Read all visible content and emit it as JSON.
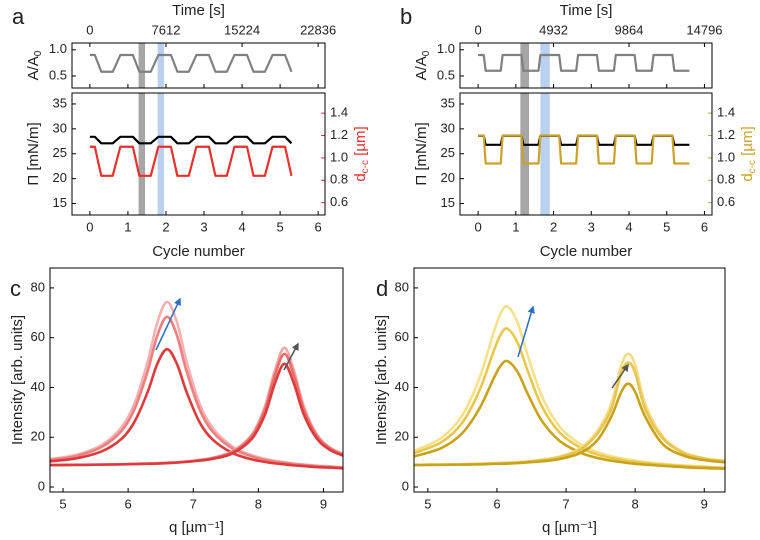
{
  "chart_data": [
    {
      "type": "stacked",
      "label": "a",
      "xlabel": "Cycle number",
      "xlim": [
        -0.47,
        6.18
      ],
      "xticks": [
        0,
        1,
        2,
        3,
        4,
        5,
        6
      ],
      "x2label": "Time [s]",
      "x2lim": [
        -1789,
        23521
      ],
      "x2ticks": [
        0,
        7612,
        15224,
        22836
      ],
      "spans": [
        {
          "x": [
            1.28,
            1.45
          ],
          "color": "#a6a6a6"
        },
        {
          "x": [
            1.78,
            1.95
          ],
          "color": "#b9d1ef"
        }
      ],
      "top": {
        "ylabel": "A/A",
        "ylabel_sub": "0",
        "ylim": [
          0.27,
          1.13
        ],
        "yticks": [
          {
            "value": 1,
            "label": "1.0"
          },
          0.5
        ],
        "series": [
          {
            "color": "#808080",
            "x": [
              0,
              0.13,
              0.3,
              0.6,
              0.8,
              1.13,
              1.3,
              1.6,
              1.8,
              2.13,
              2.3,
              2.6,
              2.8,
              3.13,
              3.3,
              3.6,
              3.8,
              4.13,
              4.3,
              4.6,
              4.8,
              5.13,
              5.3
            ],
            "values": [
              0.9,
              0.9,
              0.58,
              0.58,
              0.9,
              0.9,
              0.58,
              0.58,
              0.9,
              0.9,
              0.58,
              0.58,
              0.9,
              0.9,
              0.58,
              0.58,
              0.9,
              0.9,
              0.58,
              0.58,
              0.9,
              0.9,
              0.58
            ]
          }
        ]
      },
      "bottom": {
        "ylabel": "Π [mN/m]",
        "ylim": [
          12.7,
          37.2
        ],
        "yticks": [
          15,
          20,
          25,
          30,
          35
        ],
        "y2label": "d",
        "y2label_sub": "c-c",
        "y2label_unit": " [µm]",
        "y2lim": [
          0.49,
          1.58
        ],
        "y2color": "#e8302c",
        "y2ticks": [
          0.6,
          0.8,
          {
            "value": 1,
            "label": "1.0"
          },
          1.2,
          1.4
        ],
        "series": [
          {
            "color": "#000000",
            "x": [
              0,
              0.13,
              0.3,
              0.6,
              0.8,
              1.13,
              1.3,
              1.6,
              1.8,
              2.13,
              2.3,
              2.6,
              2.8,
              3.13,
              3.3,
              3.6,
              3.8,
              4.13,
              4.3,
              4.6,
              4.8,
              5.13,
              5.3
            ],
            "values": [
              28.4,
              28.4,
              27.1,
              27.1,
              28.4,
              28.4,
              27.1,
              27.1,
              28.4,
              28.4,
              27.1,
              27.1,
              28.4,
              28.4,
              27.1,
              27.1,
              28.4,
              28.4,
              27.1,
              27.1,
              28.4,
              28.4,
              27.1
            ]
          },
          {
            "color": "#e8302c",
            "axis": "y2",
            "x": [
              0,
              0.13,
              0.3,
              0.6,
              0.8,
              1.13,
              1.3,
              1.6,
              1.8,
              2.13,
              2.3,
              2.6,
              2.8,
              3.13,
              3.3,
              3.6,
              3.8,
              4.13,
              4.3,
              4.6,
              4.8,
              5.13,
              5.3
            ],
            "values": [
              1.1,
              1.1,
              0.84,
              0.84,
              1.1,
              1.1,
              0.84,
              0.84,
              1.1,
              1.1,
              0.84,
              0.84,
              1.1,
              1.1,
              0.84,
              0.84,
              1.1,
              1.1,
              0.84,
              0.84,
              1.1,
              1.1,
              0.84
            ]
          }
        ]
      }
    },
    {
      "type": "stacked",
      "label": "b",
      "xlabel": "Cycle number",
      "xlim": [
        -0.48,
        6.2
      ],
      "xticks": [
        0,
        1,
        2,
        3,
        4,
        5,
        6
      ],
      "x2label": "Time [s]",
      "x2lim": [
        -1184,
        15289
      ],
      "x2ticks": [
        0,
        4932,
        9864,
        14796
      ],
      "spans": [
        {
          "x": [
            1.12,
            1.35
          ],
          "color": "#a6a6a6"
        },
        {
          "x": [
            1.65,
            1.9
          ],
          "color": "#b9d1ef"
        }
      ],
      "top": {
        "ylabel": "A/A",
        "ylabel_sub": "0",
        "ylim": [
          0.27,
          1.13
        ],
        "yticks": [
          {
            "value": 1,
            "label": "1.0"
          },
          0.5
        ],
        "series": [
          {
            "color": "#808080",
            "x": [
              0,
              0.15,
              0.2,
              0.6,
              0.65,
              1.15,
              1.2,
              1.6,
              1.65,
              2.15,
              2.2,
              2.6,
              2.65,
              3.15,
              3.2,
              3.6,
              3.65,
              4.15,
              4.2,
              4.6,
              4.65,
              5.15,
              5.2,
              5.6
            ],
            "values": [
              0.9,
              0.9,
              0.6,
              0.6,
              0.9,
              0.9,
              0.6,
              0.6,
              0.9,
              0.9,
              0.6,
              0.6,
              0.9,
              0.9,
              0.6,
              0.6,
              0.9,
              0.9,
              0.6,
              0.6,
              0.9,
              0.9,
              0.6,
              0.6
            ]
          }
        ]
      },
      "bottom": {
        "ylabel": "Π [mN/m]",
        "ylim": [
          12.7,
          37.2
        ],
        "yticks": [
          15,
          20,
          25,
          30,
          35
        ],
        "y2label": "d",
        "y2label_sub": "c-c",
        "y2label_unit": " [µm]",
        "y2lim": [
          0.49,
          1.58
        ],
        "y2color": "#c9a227",
        "y2ticks": [
          0.6,
          0.8,
          {
            "value": 1,
            "label": "1.0"
          },
          1.2,
          1.4
        ],
        "series": [
          {
            "color": "#000000",
            "x": [
              0,
              0.15,
              0.2,
              0.6,
              0.65,
              1.15,
              1.2,
              1.6,
              1.65,
              2.15,
              2.2,
              2.6,
              2.65,
              3.15,
              3.2,
              3.6,
              3.65,
              4.15,
              4.2,
              4.6,
              4.65,
              5.15,
              5.2,
              5.6
            ],
            "values": [
              28.6,
              28.6,
              26.8,
              26.8,
              28.6,
              28.6,
              26.8,
              26.8,
              28.6,
              28.6,
              26.8,
              26.8,
              28.6,
              28.6,
              26.8,
              26.8,
              28.6,
              28.6,
              26.8,
              26.8,
              28.6,
              28.6,
              26.8,
              26.8
            ]
          },
          {
            "color": "#c9a227",
            "axis": "y2",
            "x": [
              0,
              0.15,
              0.2,
              0.6,
              0.65,
              1.15,
              1.2,
              1.6,
              1.65,
              2.15,
              2.2,
              2.6,
              2.65,
              3.15,
              3.2,
              3.6,
              3.65,
              4.15,
              4.2,
              4.6,
              4.65,
              5.15,
              5.2,
              5.6
            ],
            "values": [
              1.2,
              1.2,
              0.95,
              0.95,
              1.2,
              1.2,
              0.95,
              0.95,
              1.2,
              1.2,
              0.95,
              0.95,
              1.2,
              1.2,
              0.95,
              0.95,
              1.2,
              1.2,
              0.95,
              0.95,
              1.2,
              1.2,
              0.95,
              0.95
            ]
          }
        ]
      }
    },
    {
      "type": "line",
      "label": "c",
      "xlabel": "q [µm⁻¹]",
      "ylabel": "Intensity [arb. units]",
      "xlim": [
        4.8,
        9.3
      ],
      "xticks": [
        5,
        6,
        7,
        8,
        9
      ],
      "ylim": [
        -2,
        88
      ],
      "yticks": [
        0,
        20,
        40,
        60,
        80
      ],
      "x": [
        4.8,
        5.2,
        5.6,
        5.9,
        6.1,
        6.3,
        6.45,
        6.6,
        6.75,
        6.9,
        7.1,
        7.3,
        7.6,
        7.9,
        8.1,
        8.25,
        8.4,
        8.55,
        8.7,
        8.9,
        9.1,
        9.3
      ],
      "series": [
        {
          "color": "#f5b0b0",
          "values": [
            11.2,
            12.9,
            17.0,
            24.1,
            33.7,
            50.4,
            66.3,
            74.4,
            66.2,
            50.2,
            33.3,
            23.7,
            16.3,
            12.8,
            11.3,
            10.5,
            10.0,
            9.4,
            9.1,
            8.6,
            8.3,
            7.9
          ]
        },
        {
          "color": "#ee7f7f",
          "values": [
            10.9,
            12.4,
            16.2,
            22.6,
            31.4,
            46.5,
            61.0,
            68.4,
            60.9,
            46.3,
            31.0,
            22.2,
            15.5,
            12.3,
            10.9,
            10.2,
            9.7,
            9.2,
            8.8,
            8.4,
            8.1,
            7.8
          ]
        },
        {
          "color": "#dd3b3b",
          "values": [
            10.3,
            11.5,
            14.4,
            19.4,
            26.3,
            38.2,
            49.6,
            55.4,
            49.4,
            38.0,
            25.9,
            19.0,
            13.7,
            11.1,
            10.1,
            9.5,
            9.1,
            8.7,
            8.4,
            8.0,
            7.8,
            7.5
          ]
        },
        {
          "color": "#f4a6a6",
          "values": [
            8.8,
            8.9,
            9.0,
            9.2,
            9.3,
            9.5,
            9.6,
            9.8,
            10.0,
            10.3,
            10.9,
            11.8,
            14.3,
            21.1,
            32.3,
            46.5,
            56.0,
            46.5,
            32.3,
            21.1,
            15.9,
            13.3
          ]
        },
        {
          "color": "#ea6a6a",
          "values": [
            8.8,
            8.9,
            9.0,
            9.1,
            9.3,
            9.4,
            9.5,
            9.7,
            9.9,
            10.2,
            10.8,
            11.6,
            14.0,
            20.4,
            31.0,
            44.5,
            53.5,
            44.5,
            31.0,
            20.4,
            15.5,
            13.0
          ]
        },
        {
          "color": "#dd3b3b",
          "values": [
            8.8,
            8.9,
            9.0,
            9.1,
            9.2,
            9.3,
            9.4,
            9.6,
            9.8,
            10.1,
            10.6,
            11.3,
            13.5,
            19.4,
            29.0,
            41.3,
            49.5,
            41.3,
            29.0,
            19.4,
            14.9,
            12.6
          ]
        }
      ]
    },
    {
      "type": "line",
      "label": "d",
      "xlabel": "q [µm⁻¹]",
      "ylabel": "Intensity [arb. units]",
      "xlim": [
        4.8,
        9.3
      ],
      "xticks": [
        5,
        6,
        7,
        8,
        9
      ],
      "ylim": [
        -2,
        88
      ],
      "yticks": [
        0,
        20,
        40,
        60,
        80
      ],
      "x": [
        4.8,
        5.2,
        5.5,
        5.75,
        5.95,
        6.05,
        6.15,
        6.3,
        6.45,
        6.65,
        6.9,
        7.2,
        7.45,
        7.65,
        7.8,
        7.9,
        8.0,
        8.15,
        8.4,
        8.7,
        9.0,
        9.3
      ],
      "series": [
        {
          "color": "#f7e08a",
          "values": [
            14.5,
            19.8,
            28.9,
            44.0,
            61.9,
            69.5,
            72.6,
            66.0,
            52.5,
            36.5,
            24.5,
            17.3,
            14.1,
            12.4,
            11.5,
            11.0,
            10.6,
            10.0,
            9.3,
            8.7,
            8.2,
            7.8
          ]
        },
        {
          "color": "#e8c84a",
          "values": [
            13.6,
            18.1,
            25.9,
            39.0,
            54.4,
            61.0,
            63.6,
            57.9,
            46.3,
            32.4,
            22.1,
            15.9,
            13.1,
            11.7,
            10.9,
            10.4,
            10.1,
            9.6,
            9.0,
            8.4,
            8.0,
            7.6
          ]
        },
        {
          "color": "#c9a21a",
          "values": [
            12.3,
            15.7,
            21.7,
            31.7,
            43.5,
            48.6,
            50.6,
            46.2,
            37.2,
            26.6,
            18.7,
            13.9,
            11.7,
            10.6,
            10.0,
            9.6,
            9.3,
            9.0,
            8.5,
            8.0,
            7.6,
            7.4
          ]
        },
        {
          "color": "#f5dc80",
          "values": [
            8.9,
            9.1,
            9.2,
            9.4,
            9.5,
            9.7,
            9.8,
            10.0,
            10.3,
            11.0,
            12.2,
            15.5,
            22.4,
            33.1,
            49.0,
            53.5,
            49.0,
            33.1,
            20.4,
            14.0,
            11.6,
            10.5
          ]
        },
        {
          "color": "#e6c450",
          "values": [
            8.9,
            9.0,
            9.1,
            9.3,
            9.5,
            9.6,
            9.7,
            9.9,
            10.2,
            10.8,
            11.9,
            14.9,
            21.3,
            31.0,
            45.9,
            50.0,
            45.9,
            31.0,
            19.5,
            13.6,
            11.4,
            10.3
          ]
        },
        {
          "color": "#c9a21a",
          "values": [
            8.8,
            8.9,
            9.0,
            9.1,
            9.3,
            9.3,
            9.4,
            9.6,
            9.9,
            10.3,
            11.2,
            13.6,
            18.7,
            28.0,
            38.2,
            41.5,
            38.2,
            28.0,
            17.2,
            12.6,
            10.8,
            9.9
          ]
        }
      ]
    }
  ]
}
